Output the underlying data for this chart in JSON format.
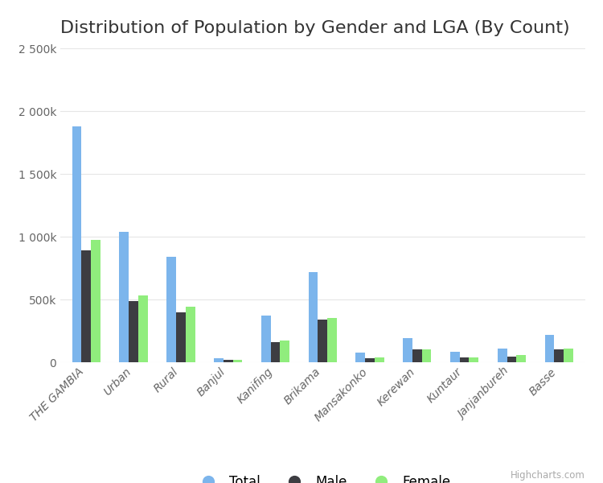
{
  "title": "Distribution of Population by Gender and LGA (By Count)",
  "categories": [
    "THE GAMBIA",
    "Urban",
    "Rural",
    "Banjul",
    "Kanifing",
    "Brikama",
    "Mansakonko",
    "Kerewan",
    "Kuntaur",
    "Janjanbureh",
    "Basse"
  ],
  "series": {
    "Total": [
      1880000,
      1040000,
      840000,
      35000,
      370000,
      720000,
      75000,
      190000,
      85000,
      110000,
      220000
    ],
    "Male": [
      890000,
      490000,
      400000,
      17000,
      160000,
      340000,
      35000,
      100000,
      38000,
      48000,
      105000
    ],
    "Female": [
      975000,
      535000,
      440000,
      17000,
      175000,
      355000,
      38000,
      105000,
      40000,
      55000,
      110000
    ]
  },
  "colors": {
    "Total": "#7cb5ec",
    "Male": "#3d3d42",
    "Female": "#90ed7d"
  },
  "ylim": [
    0,
    2500000
  ],
  "yticks": [
    0,
    500000,
    1000000,
    1500000,
    2000000,
    2500000
  ],
  "ytick_labels": [
    "0",
    "500k",
    "1 000k",
    "1 500k",
    "2 000k",
    "2 500k"
  ],
  "background_color": "#ffffff",
  "grid_color": "#e6e6e6",
  "title_fontsize": 16,
  "axis_fontsize": 10,
  "legend_fontsize": 12,
  "watermark": "Highcharts.com"
}
